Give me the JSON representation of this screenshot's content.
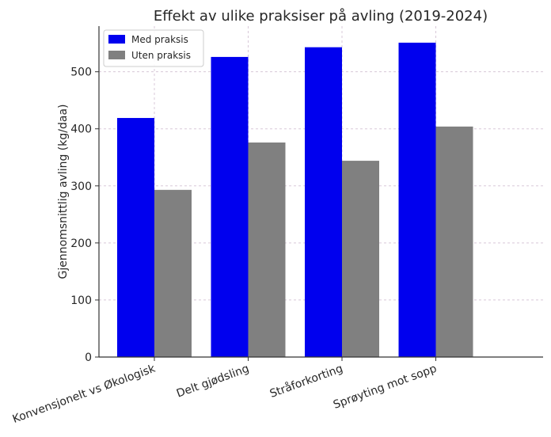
{
  "chart_data": {
    "type": "bar",
    "title": "Effekt av ulike praksiser på avling (2019-2024)",
    "xlabel": "",
    "ylabel": "Gjennomsnittlig avling (kg/daa)",
    "categories": [
      "Konvensjonelt vs Økologisk",
      "Delt gjødsling",
      "Stråforkorting",
      "Sprøyting mot sopp"
    ],
    "series": [
      {
        "name": "Med praksis",
        "color": "#0000ee",
        "values": [
          419,
          526,
          543,
          551
        ]
      },
      {
        "name": "Uten praksis",
        "color": "#808080",
        "values": [
          293,
          376,
          344,
          404
        ]
      }
    ],
    "ylim": [
      0,
      580
    ],
    "yticks": [
      0,
      100,
      200,
      300,
      400,
      500
    ],
    "grid": true,
    "legend": "top-left"
  }
}
